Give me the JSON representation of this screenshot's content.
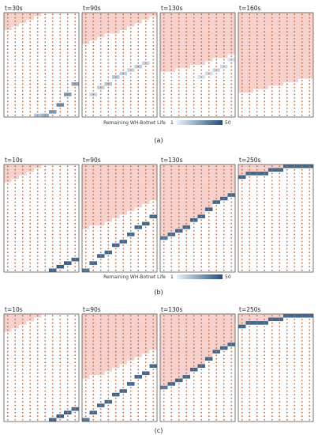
{
  "colors": {
    "infected": "#f7d2cc",
    "dot": "#c06b3c",
    "frame": "#555555",
    "cbar_low": "#e9f1f8",
    "cbar_high": "#1f4f7d"
  },
  "colorbar": {
    "label": "Remaining WH-Botnet Life",
    "min_label": "1",
    "max_label": "50",
    "range": [
      1,
      50
    ]
  },
  "chart_data": [
    {
      "type": "heatmap",
      "caption": "(a)",
      "grid": {
        "cols": 10,
        "rows": 30
      },
      "colorbar": "Remaining WH-Botnet Life",
      "panels": [
        {
          "title": "t=30s",
          "front": [
            5,
            4,
            3,
            2,
            1,
            0,
            0,
            0,
            0,
            0
          ],
          "wh": [
            [
              4,
              29,
              14
            ],
            [
              5,
              29,
              22
            ],
            [
              6,
              28,
              30
            ],
            [
              7,
              26,
              35
            ],
            [
              8,
              23,
              30
            ],
            [
              9,
              20,
              25
            ]
          ]
        },
        {
          "title": "t=90s",
          "front": [
            9,
            8,
            7,
            6,
            6,
            5,
            4,
            3,
            2,
            1
          ],
          "wh": [
            [
              1,
              23,
              10
            ],
            [
              2,
              21,
              12
            ],
            [
              3,
              20,
              15
            ],
            [
              4,
              18,
              14
            ],
            [
              5,
              17,
              12
            ],
            [
              6,
              16,
              10
            ],
            [
              7,
              15,
              12
            ],
            [
              8,
              14,
              10
            ]
          ]
        },
        {
          "title": "t=130s",
          "front": [
            17,
            17,
            16,
            16,
            15,
            15,
            14,
            13,
            13,
            12
          ],
          "wh": [
            [
              5,
              18,
              6
            ],
            [
              6,
              17,
              8
            ],
            [
              7,
              16,
              10
            ],
            [
              8,
              15,
              8
            ],
            [
              9,
              13,
              6
            ]
          ]
        },
        {
          "title": "t=160s",
          "front": [
            23,
            23,
            22,
            22,
            21,
            21,
            20,
            20,
            19,
            19
          ],
          "wh": []
        }
      ]
    },
    {
      "type": "heatmap",
      "caption": "(b)",
      "grid": {
        "cols": 10,
        "rows": 30
      },
      "colorbar": "Remaining WH-Botnet Life",
      "panels": [
        {
          "title": "t=10s",
          "front": [
            5,
            4,
            3,
            2,
            1,
            0,
            0,
            0,
            0,
            0
          ],
          "wh": [
            [
              6,
              29,
              45
            ],
            [
              7,
              28,
              48
            ],
            [
              8,
              27,
              48
            ],
            [
              9,
              26,
              45
            ]
          ]
        },
        {
          "title": "t=90s",
          "front": [
            18,
            17,
            17,
            16,
            15,
            14,
            13,
            12,
            11,
            10
          ],
          "wh": [
            [
              0,
              29,
              40
            ],
            [
              1,
              27,
              45
            ],
            [
              2,
              25,
              45
            ],
            [
              3,
              24,
              45
            ],
            [
              4,
              22,
              45
            ],
            [
              5,
              21,
              45
            ],
            [
              6,
              19,
              45
            ],
            [
              7,
              17,
              45
            ],
            [
              8,
              16,
              45
            ],
            [
              9,
              14,
              45
            ]
          ]
        },
        {
          "title": "t=130s",
          "front": [
            20,
            19,
            18,
            17,
            15,
            14,
            12,
            10,
            9,
            8
          ],
          "wh": [
            [
              0,
              20,
              40
            ],
            [
              1,
              19,
              45
            ],
            [
              2,
              18,
              45
            ],
            [
              3,
              17,
              45
            ],
            [
              4,
              15,
              45
            ],
            [
              5,
              14,
              45
            ],
            [
              6,
              12,
              45
            ],
            [
              7,
              10,
              45
            ],
            [
              8,
              9,
              45
            ],
            [
              9,
              8,
              45
            ]
          ]
        },
        {
          "title": "t=250s",
          "front": [
            3,
            2,
            2,
            2,
            1,
            1,
            0,
            0,
            0,
            0
          ],
          "wh": [
            [
              0,
              3,
              45
            ],
            [
              1,
              2,
              45
            ],
            [
              2,
              2,
              45
            ],
            [
              3,
              2,
              45
            ],
            [
              4,
              1,
              45
            ],
            [
              5,
              1,
              45
            ],
            [
              6,
              0,
              45
            ],
            [
              7,
              0,
              45
            ],
            [
              8,
              0,
              45
            ],
            [
              9,
              0,
              45
            ]
          ]
        }
      ]
    },
    {
      "type": "heatmap",
      "caption": "(c)",
      "grid": {
        "cols": 10,
        "rows": 30
      },
      "colorbar": "",
      "panels": [
        {
          "title": "t=10s",
          "front": [
            5,
            4,
            3,
            2,
            1,
            0,
            0,
            0,
            0,
            0
          ],
          "wh": [
            [
              6,
              29,
              45
            ],
            [
              7,
              28,
              48
            ],
            [
              8,
              27,
              48
            ],
            [
              9,
              26,
              45
            ]
          ]
        },
        {
          "title": "t=90s",
          "front": [
            18,
            17,
            17,
            16,
            15,
            14,
            13,
            12,
            11,
            10
          ],
          "wh": [
            [
              0,
              29,
              40
            ],
            [
              1,
              27,
              45
            ],
            [
              2,
              25,
              45
            ],
            [
              3,
              24,
              45
            ],
            [
              4,
              22,
              45
            ],
            [
              5,
              21,
              45
            ],
            [
              6,
              19,
              45
            ],
            [
              7,
              17,
              45
            ],
            [
              8,
              16,
              45
            ],
            [
              9,
              14,
              45
            ]
          ]
        },
        {
          "title": "t=130s",
          "front": [
            20,
            19,
            18,
            17,
            15,
            14,
            12,
            10,
            9,
            8
          ],
          "wh": [
            [
              0,
              20,
              40
            ],
            [
              1,
              19,
              45
            ],
            [
              2,
              18,
              45
            ],
            [
              3,
              17,
              45
            ],
            [
              4,
              15,
              45
            ],
            [
              5,
              14,
              45
            ],
            [
              6,
              12,
              45
            ],
            [
              7,
              10,
              45
            ],
            [
              8,
              9,
              45
            ],
            [
              9,
              8,
              45
            ]
          ]
        },
        {
          "title": "t=250s",
          "front": [
            3,
            2,
            2,
            2,
            1,
            1,
            0,
            0,
            0,
            0
          ],
          "wh": [
            [
              0,
              3,
              45
            ],
            [
              1,
              2,
              45
            ],
            [
              2,
              2,
              45
            ],
            [
              3,
              2,
              45
            ],
            [
              4,
              1,
              45
            ],
            [
              5,
              1,
              45
            ],
            [
              6,
              0,
              45
            ],
            [
              7,
              0,
              45
            ],
            [
              8,
              0,
              45
            ],
            [
              9,
              0,
              45
            ]
          ]
        }
      ]
    }
  ]
}
